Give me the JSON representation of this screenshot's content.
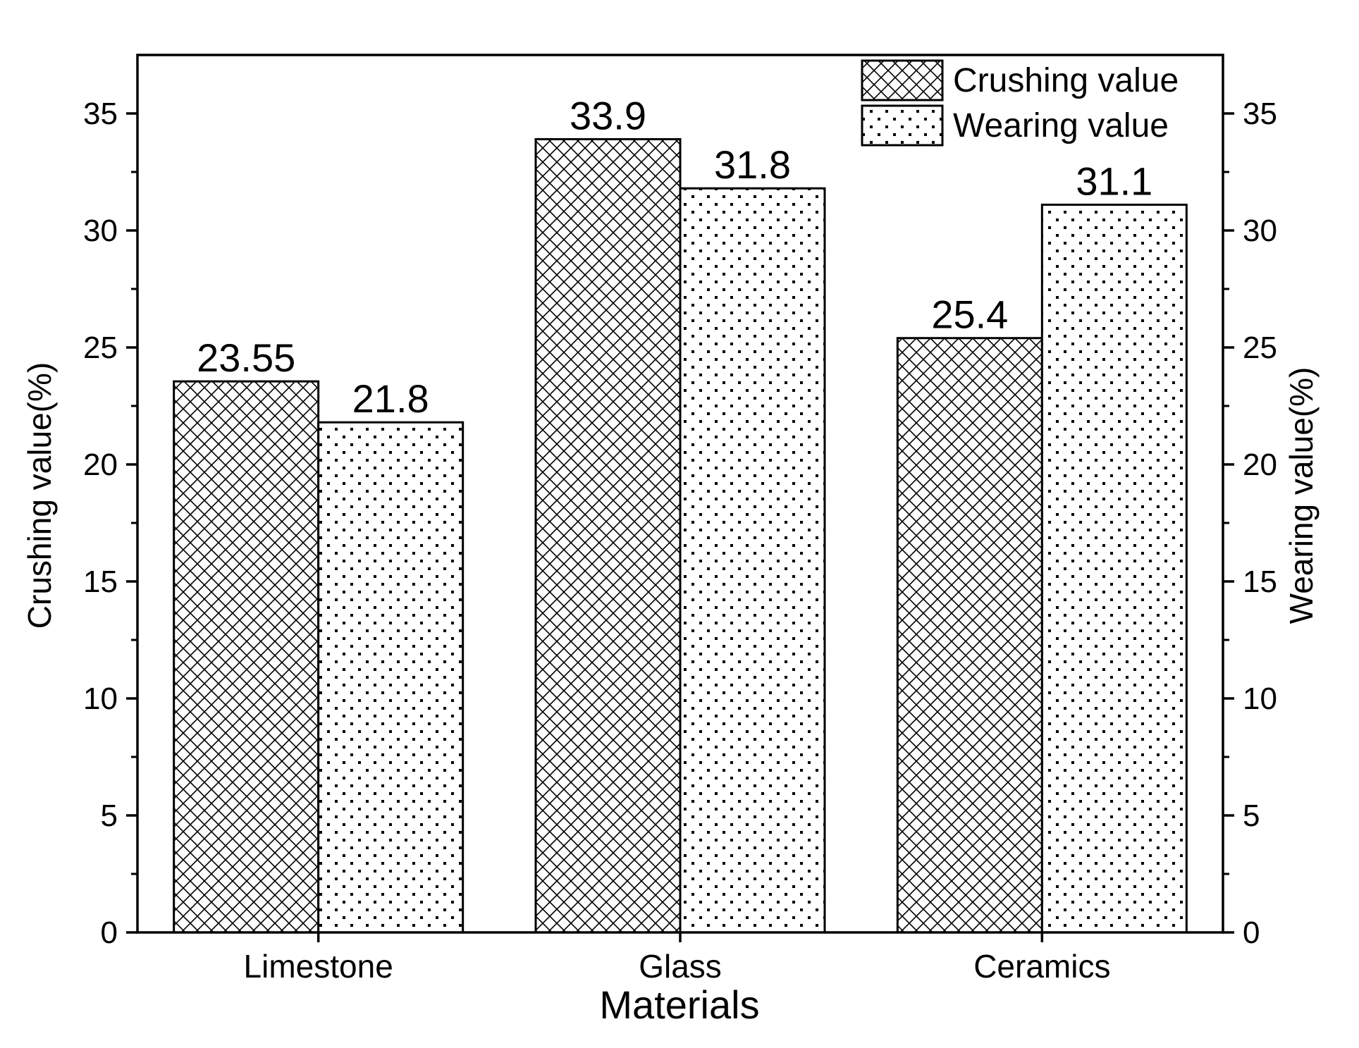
{
  "chart_data": {
    "type": "bar",
    "categories": [
      "Limestone",
      "Glass",
      "Ceramics"
    ],
    "series": [
      {
        "name": "Crushing value",
        "values": [
          23.55,
          33.9,
          25.4
        ],
        "value_labels": [
          "23.55",
          "33.9",
          "25.4"
        ],
        "pattern": "crosshatch",
        "axis": "left"
      },
      {
        "name": "Wearing value",
        "values": [
          21.8,
          31.8,
          31.1
        ],
        "value_labels": [
          "21.8",
          "31.8",
          "31.1"
        ],
        "pattern": "dots",
        "axis": "right"
      }
    ],
    "xlabel": "Materials",
    "ylabel_left": "Crushing value(%)",
    "ylabel_right": "Wearing value(%)",
    "ylim": [
      0,
      37.5
    ],
    "yticks": [
      0,
      5,
      10,
      15,
      20,
      25,
      30,
      35
    ],
    "ytick_labels": [
      "0",
      "5",
      "10",
      "15",
      "20",
      "25",
      "30",
      "35"
    ],
    "legend_position": "top-right",
    "grid": false,
    "colors": {
      "stroke": "#000000",
      "fill": "#ffffff"
    }
  }
}
